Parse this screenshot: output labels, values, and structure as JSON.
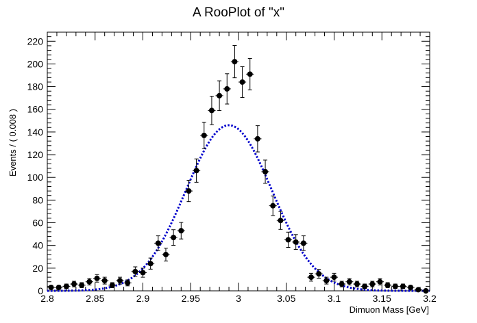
{
  "chart_data": {
    "type": "scatter",
    "title": "A RooPlot of \"x\"",
    "xlabel": "Dimuon Mass [GeV]",
    "ylabel": "Events / ( 0.008 )",
    "xlim": [
      2.8,
      3.2
    ],
    "ylim": [
      0,
      228
    ],
    "grid": false,
    "x_ticks": [
      2.8,
      2.85,
      2.9,
      2.95,
      3,
      3.05,
      3.1,
      3.15,
      3.2
    ],
    "x_tick_labels": [
      "2.8",
      "2.85",
      "2.9",
      "2.95",
      "3",
      "3.05",
      "3.1",
      "3.15",
      "3.2"
    ],
    "y_ticks": [
      0,
      20,
      40,
      60,
      80,
      100,
      120,
      140,
      160,
      180,
      200,
      220
    ],
    "y_tick_labels": [
      "0",
      "20",
      "40",
      "60",
      "80",
      "100",
      "120",
      "140",
      "160",
      "180",
      "200",
      "220"
    ],
    "bin_width": 0.008,
    "series": [
      {
        "kind": "data-points-with-errors",
        "color": "#000000",
        "x": [
          2.804,
          2.812,
          2.82,
          2.828,
          2.836,
          2.844,
          2.852,
          2.86,
          2.868,
          2.876,
          2.884,
          2.892,
          2.9,
          2.908,
          2.916,
          2.924,
          2.932,
          2.94,
          2.948,
          2.956,
          2.964,
          2.972,
          2.98,
          2.988,
          2.996,
          3.004,
          3.012,
          3.02,
          3.028,
          3.036,
          3.044,
          3.052,
          3.06,
          3.068,
          3.076,
          3.084,
          3.092,
          3.1,
          3.108,
          3.116,
          3.124,
          3.132,
          3.14,
          3.148,
          3.156,
          3.164,
          3.172,
          3.18,
          3.188,
          3.196
        ],
        "y": [
          3,
          3,
          4,
          6,
          5,
          8,
          11,
          9,
          5,
          9,
          7,
          17,
          16,
          24,
          42,
          32,
          47,
          53,
          88,
          106,
          137,
          159,
          172,
          178,
          202,
          184,
          191,
          134,
          105,
          75,
          62,
          45,
          43,
          42,
          12,
          15,
          9,
          12,
          6,
          8,
          6,
          4,
          6,
          8,
          5,
          4,
          4,
          3,
          1,
          0
        ]
      },
      {
        "kind": "gaussian-fit",
        "style": "dotted",
        "color": "#0000cc",
        "peak": 146,
        "mean": 2.99,
        "sigma": 0.045,
        "x_range": [
          2.8,
          3.2
        ]
      }
    ]
  }
}
